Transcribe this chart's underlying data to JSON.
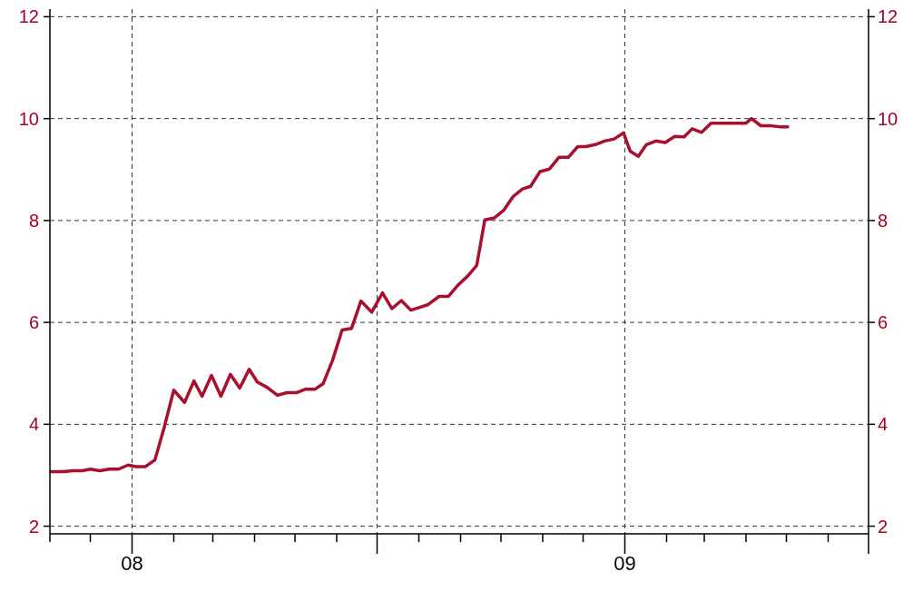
{
  "chart_data": {
    "type": "line",
    "x": [
      "2007-11-02",
      "2007-11-11",
      "2007-11-18",
      "2007-11-25",
      "2007-12-01",
      "2007-12-08",
      "2007-12-15",
      "2007-12-22",
      "2007-12-29",
      "2008-01-04",
      "2008-01-11",
      "2008-01-18",
      "2008-01-25",
      "2008-02-01",
      "2008-02-09",
      "2008-02-16",
      "2008-02-22",
      "2008-02-29",
      "2008-03-07",
      "2008-03-14",
      "2008-03-21",
      "2008-03-28",
      "2008-04-03",
      "2008-04-10",
      "2008-04-18",
      "2008-04-25",
      "2008-05-02",
      "2008-05-09",
      "2008-05-16",
      "2008-05-22",
      "2008-05-29",
      "2008-06-05",
      "2008-06-12",
      "2008-06-19",
      "2008-06-27",
      "2008-07-05",
      "2008-07-12",
      "2008-07-19",
      "2008-07-26",
      "2008-08-01",
      "2008-08-08",
      "2008-08-16",
      "2008-08-23",
      "2008-08-30",
      "2008-09-06",
      "2008-09-13",
      "2008-09-19",
      "2008-09-26",
      "2008-10-03",
      "2008-10-10",
      "2008-10-17",
      "2008-10-23",
      "2008-10-30",
      "2008-11-06",
      "2008-11-13",
      "2008-11-20",
      "2008-11-27",
      "2008-12-03",
      "2008-12-10",
      "2008-12-17",
      "2008-12-24",
      "2008-12-31",
      "2009-01-05",
      "2009-01-11",
      "2009-01-17",
      "2009-01-24",
      "2009-01-31",
      "2009-02-07",
      "2009-02-14",
      "2009-02-20",
      "2009-02-27",
      "2009-03-06",
      "2009-03-13",
      "2009-03-20",
      "2009-03-27",
      "2009-04-01",
      "2009-04-05",
      "2009-04-12",
      "2009-04-19",
      "2009-04-26",
      "2009-05-02"
    ],
    "series": [
      {
        "color": "#a8102e",
        "values": [
          3.07,
          3.07,
          3.09,
          3.09,
          3.12,
          3.09,
          3.12,
          3.12,
          3.2,
          3.17,
          3.17,
          3.3,
          3.95,
          4.67,
          4.43,
          4.85,
          4.55,
          4.96,
          4.55,
          4.98,
          4.71,
          5.08,
          4.83,
          4.73,
          4.57,
          4.62,
          4.62,
          4.69,
          4.69,
          4.8,
          5.26,
          5.85,
          5.88,
          6.42,
          6.2,
          6.58,
          6.27,
          6.43,
          6.24,
          6.29,
          6.35,
          6.51,
          6.51,
          6.73,
          6.9,
          7.12,
          8.01,
          8.05,
          8.2,
          8.47,
          8.62,
          8.67,
          8.96,
          9.01,
          9.24,
          9.24,
          9.45,
          9.45,
          9.49,
          9.56,
          9.6,
          9.72,
          9.36,
          9.26,
          9.49,
          9.56,
          9.53,
          9.65,
          9.64,
          9.8,
          9.73,
          9.91,
          9.91,
          9.91,
          9.91,
          9.91,
          10.0,
          9.86,
          9.86,
          9.84,
          9.84
        ]
      }
    ],
    "xlim": [
      "2007-11-01",
      "2009-07-01"
    ],
    "xticks": [
      {
        "value": "2007-11-01",
        "label": null
      },
      {
        "value": "2007-12-01",
        "label": null
      },
      {
        "value": "2008-01-01",
        "label": "08"
      },
      {
        "value": "2008-02-01",
        "label": null
      },
      {
        "value": "2008-03-01",
        "label": null
      },
      {
        "value": "2008-04-01",
        "label": null
      },
      {
        "value": "2008-05-01",
        "label": null
      },
      {
        "value": "2008-06-01",
        "label": null
      },
      {
        "value": "2008-07-01",
        "label": null
      },
      {
        "value": "2008-08-01",
        "label": null
      },
      {
        "value": "2008-09-01",
        "label": null
      },
      {
        "value": "2008-10-01",
        "label": null
      },
      {
        "value": "2008-11-01",
        "label": null
      },
      {
        "value": "2008-12-01",
        "label": null
      },
      {
        "value": "2009-01-01",
        "label": "09"
      },
      {
        "value": "2009-02-01",
        "label": null
      },
      {
        "value": "2009-03-01",
        "label": null
      },
      {
        "value": "2009-04-01",
        "label": null
      },
      {
        "value": "2009-05-01",
        "label": null
      },
      {
        "value": "2009-06-01",
        "label": null
      },
      {
        "value": "2009-07-01",
        "label": null
      }
    ],
    "ylim": [
      1.85,
      12.15
    ],
    "yticks": [
      2,
      4,
      6,
      8,
      10,
      12
    ],
    "y2lim": [
      1.85,
      12.15
    ],
    "y2ticks": [
      2,
      4,
      6,
      8,
      10,
      12
    ],
    "grid": true,
    "line_style": "solid",
    "marker": "none"
  }
}
